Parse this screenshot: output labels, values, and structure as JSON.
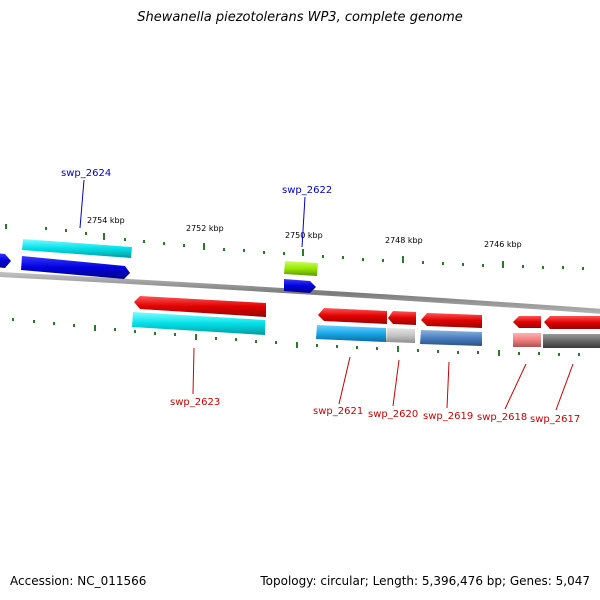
{
  "title": "Shewanella piezotolerans WP3, complete genome",
  "accession_text": "Accession: NC_011566",
  "summary_text": "Topology: circular; Length: 5,396,476 bp; Genes: 5,047",
  "position_labels": [
    "2754 kbp",
    "2752 kbp",
    "2750 kbp",
    "2748 kbp",
    "2746 kbp"
  ],
  "gene_labels": {
    "swp_2624": "swp_2624",
    "swp_2622": "swp_2622",
    "swp_2623": "swp_2623",
    "swp_2621": "swp_2621",
    "swp_2620": "swp_2620",
    "swp_2619": "swp_2619",
    "swp_2618": "swp_2618",
    "swp_2617": "swp_2617"
  },
  "colors": {
    "forward_gene": "#0000dd",
    "reverse_gene": "#e00000",
    "cds_cyan": "#00e0e8",
    "cds_lime": "#99e800",
    "tick": "#2a7a2a",
    "backbone": "#888888"
  }
}
